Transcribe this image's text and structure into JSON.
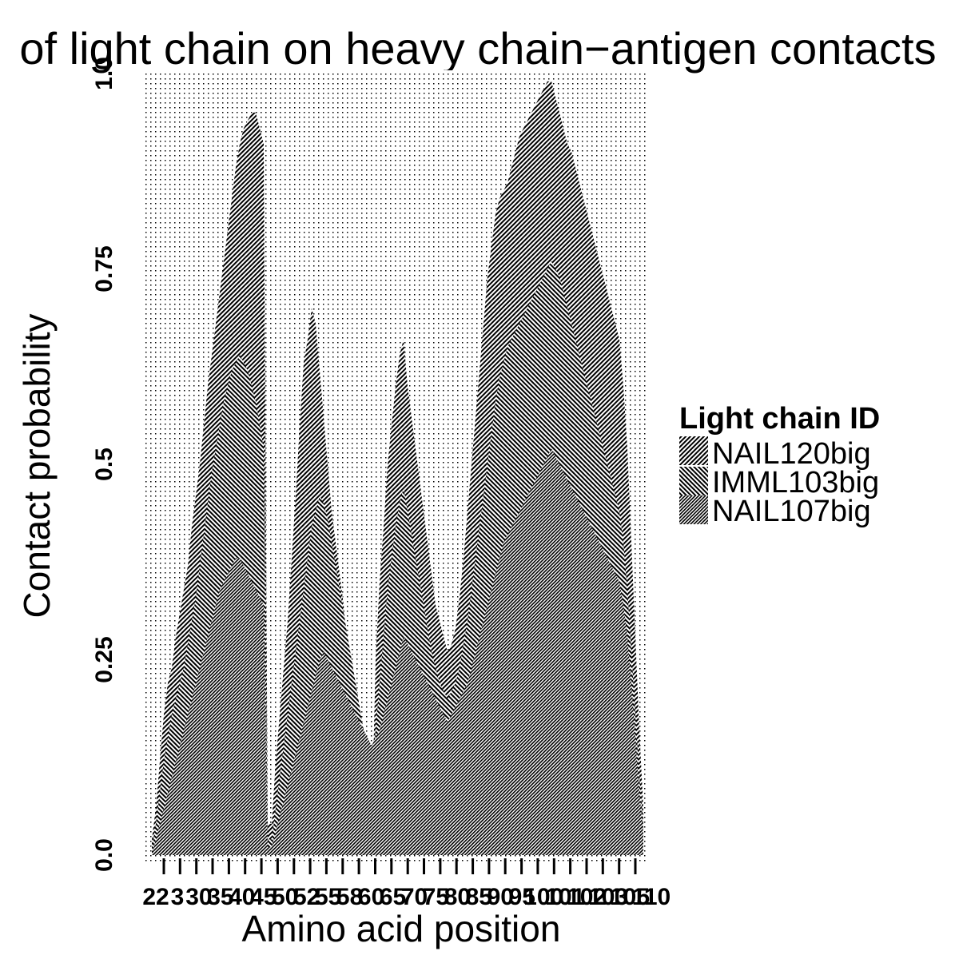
{
  "chart_data": {
    "type": "area",
    "title": "of light chain on heavy chain−antigen contacts",
    "xlabel": "Amino acid position",
    "ylabel": "Contact probability",
    "ylim": [
      0,
      1
    ],
    "grid": true,
    "legend_title": "Light chain ID",
    "legend_position": "right",
    "x": [
      1,
      2,
      3,
      4,
      5,
      6,
      7,
      8,
      9,
      10,
      11,
      12,
      13,
      14,
      15,
      16,
      17,
      18,
      19,
      20,
      21,
      22,
      23,
      24,
      25,
      26,
      27,
      28,
      29,
      30,
      31,
      32,
      33,
      34,
      35,
      36,
      37,
      38,
      39,
      40,
      41,
      42,
      43,
      44,
      45,
      46,
      47,
      48,
      49,
      50,
      51,
      52,
      53,
      54,
      55,
      56,
      57,
      58,
      59,
      60,
      61,
      62,
      63,
      64,
      65,
      66,
      67,
      68,
      69,
      70,
      71,
      72,
      73,
      74,
      75,
      76,
      77,
      78,
      79,
      80,
      81,
      82,
      83,
      84,
      85,
      86,
      87,
      88,
      89,
      90,
      91,
      92,
      93,
      94,
      95,
      96,
      97,
      98,
      99,
      100,
      101,
      102,
      103,
      104,
      105,
      106,
      107,
      108,
      109,
      110,
      111,
      112,
      113,
      114,
      115,
      116,
      117,
      118,
      119,
      120,
      121,
      122,
      123,
      124
    ],
    "series": [
      {
        "name": "NAIL120big",
        "values": [
          0.02,
          0.06,
          0.12,
          0.18,
          0.22,
          0.24,
          0.28,
          0.31,
          0.34,
          0.37,
          0.42,
          0.46,
          0.5,
          0.55,
          0.6,
          0.64,
          0.68,
          0.72,
          0.76,
          0.8,
          0.84,
          0.88,
          0.91,
          0.93,
          0.94,
          0.95,
          0.95,
          0.93,
          0.91,
          0.04,
          0.04,
          0.12,
          0.18,
          0.24,
          0.3,
          0.38,
          0.46,
          0.55,
          0.63,
          0.66,
          0.7,
          0.68,
          0.62,
          0.56,
          0.5,
          0.44,
          0.4,
          0.36,
          0.32,
          0.26,
          0.22,
          0.17,
          0.12,
          0.08,
          0.05,
          0.03,
          0.25,
          0.35,
          0.42,
          0.5,
          0.55,
          0.6,
          0.64,
          0.66,
          0.6,
          0.56,
          0.52,
          0.48,
          0.44,
          0.4,
          0.36,
          0.32,
          0.3,
          0.28,
          0.26,
          0.27,
          0.29,
          0.33,
          0.38,
          0.44,
          0.5,
          0.56,
          0.62,
          0.68,
          0.74,
          0.78,
          0.82,
          0.84,
          0.85,
          0.86,
          0.88,
          0.9,
          0.92,
          0.93,
          0.94,
          0.95,
          0.96,
          0.97,
          0.98,
          0.99,
          0.99,
          0.97,
          0.95,
          0.93,
          0.91,
          0.9,
          0.88,
          0.86,
          0.84,
          0.82,
          0.8,
          0.78,
          0.76,
          0.74,
          0.72,
          0.7,
          0.68,
          0.66,
          0.6,
          0.52,
          0.4,
          0.28,
          0.16,
          0.06
        ]
      },
      {
        "name": "IMML103big",
        "values": [
          0.01,
          0.04,
          0.08,
          0.12,
          0.15,
          0.18,
          0.2,
          0.22,
          0.24,
          0.27,
          0.3,
          0.33,
          0.37,
          0.41,
          0.45,
          0.49,
          0.52,
          0.55,
          0.58,
          0.6,
          0.62,
          0.63,
          0.64,
          0.63,
          0.62,
          0.6,
          0.58,
          0.55,
          0.52,
          0.02,
          0.02,
          0.06,
          0.1,
          0.14,
          0.18,
          0.22,
          0.26,
          0.3,
          0.34,
          0.38,
          0.42,
          0.44,
          0.46,
          0.45,
          0.43,
          0.4,
          0.37,
          0.34,
          0.31,
          0.28,
          0.25,
          0.22,
          0.19,
          0.16,
          0.13,
          0.1,
          0.16,
          0.22,
          0.28,
          0.34,
          0.38,
          0.42,
          0.45,
          0.47,
          0.44,
          0.41,
          0.38,
          0.35,
          0.32,
          0.29,
          0.26,
          0.24,
          0.22,
          0.21,
          0.2,
          0.21,
          0.22,
          0.24,
          0.27,
          0.3,
          0.34,
          0.38,
          0.42,
          0.46,
          0.5,
          0.54,
          0.58,
          0.61,
          0.63,
          0.65,
          0.66,
          0.67,
          0.68,
          0.69,
          0.7,
          0.71,
          0.72,
          0.73,
          0.74,
          0.75,
          0.76,
          0.75,
          0.74,
          0.72,
          0.7,
          0.68,
          0.66,
          0.64,
          0.62,
          0.6,
          0.58,
          0.56,
          0.54,
          0.52,
          0.5,
          0.48,
          0.46,
          0.44,
          0.4,
          0.34,
          0.26,
          0.18,
          0.1,
          0.04
        ]
      },
      {
        "name": "NAIL107big",
        "values": [
          0.0,
          0.02,
          0.04,
          0.06,
          0.08,
          0.1,
          0.12,
          0.14,
          0.16,
          0.18,
          0.2,
          0.22,
          0.24,
          0.26,
          0.28,
          0.3,
          0.32,
          0.34,
          0.35,
          0.36,
          0.37,
          0.38,
          0.38,
          0.37,
          0.36,
          0.35,
          0.34,
          0.33,
          0.32,
          0.01,
          0.01,
          0.03,
          0.05,
          0.07,
          0.09,
          0.11,
          0.13,
          0.15,
          0.17,
          0.19,
          0.21,
          0.23,
          0.25,
          0.26,
          0.25,
          0.24,
          0.23,
          0.22,
          0.21,
          0.2,
          0.19,
          0.18,
          0.17,
          0.16,
          0.15,
          0.14,
          0.15,
          0.16,
          0.18,
          0.2,
          0.22,
          0.24,
          0.26,
          0.28,
          0.27,
          0.26,
          0.25,
          0.24,
          0.23,
          0.22,
          0.21,
          0.2,
          0.19,
          0.18,
          0.17,
          0.18,
          0.19,
          0.2,
          0.21,
          0.22,
          0.24,
          0.26,
          0.28,
          0.3,
          0.32,
          0.34,
          0.36,
          0.38,
          0.4,
          0.41,
          0.42,
          0.43,
          0.44,
          0.45,
          0.46,
          0.47,
          0.48,
          0.49,
          0.5,
          0.51,
          0.52,
          0.51,
          0.5,
          0.49,
          0.48,
          0.47,
          0.46,
          0.45,
          0.44,
          0.43,
          0.42,
          0.41,
          0.4,
          0.39,
          0.38,
          0.37,
          0.36,
          0.35,
          0.32,
          0.28,
          0.22,
          0.15,
          0.08,
          0.03
        ]
      }
    ],
    "x_tick_labels": [
      "22",
      "3",
      "30",
      "35",
      "40",
      "45",
      "50",
      "52",
      "55",
      "58",
      "60",
      "65",
      "70",
      "75",
      "80",
      "85",
      "90",
      "95",
      "100",
      "101",
      "102",
      "103",
      "105",
      "110"
    ],
    "y_tick_labels": [
      "0.0",
      "0.25",
      "0.5",
      "0.75",
      "1.0"
    ]
  }
}
